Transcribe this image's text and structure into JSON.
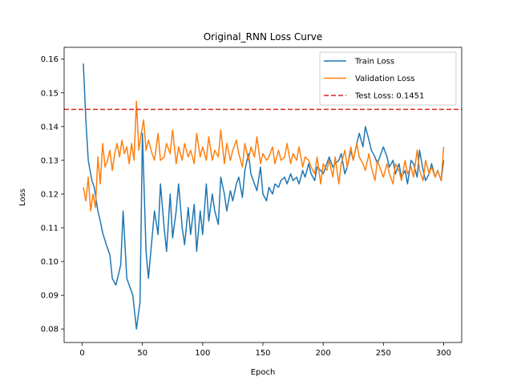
{
  "chart_data": {
    "type": "line",
    "title": "Original_RNN Loss Curve",
    "xlabel": "Epoch",
    "ylabel": "Loss",
    "xlim": [
      -15,
      315
    ],
    "ylim": [
      0.076,
      0.1635
    ],
    "xticks": [
      0,
      50,
      100,
      150,
      200,
      250,
      300
    ],
    "yticks": [
      0.08,
      0.09,
      0.1,
      0.11,
      0.12,
      0.13,
      0.14,
      0.15,
      0.16
    ],
    "ytick_labels": [
      "0.08",
      "0.09",
      "0.10",
      "0.11",
      "0.12",
      "0.13",
      "0.14",
      "0.15",
      "0.16"
    ],
    "grid": false,
    "legend": {
      "position": "top-right"
    },
    "colors": {
      "train": "#1f77b4",
      "validation": "#ff7f0e",
      "test": "#d62728"
    },
    "series": [
      {
        "name": "Train Loss",
        "style": "solid",
        "x": [
          1,
          3,
          5,
          8,
          10,
          13,
          15,
          17,
          20,
          23,
          25,
          28,
          30,
          32,
          34,
          37,
          40,
          42,
          45,
          48,
          50,
          53,
          55,
          58,
          60,
          63,
          65,
          68,
          70,
          73,
          75,
          78,
          80,
          83,
          85,
          88,
          90,
          93,
          95,
          98,
          100,
          103,
          105,
          108,
          110,
          113,
          115,
          118,
          120,
          123,
          125,
          128,
          130,
          133,
          135,
          138,
          140,
          143,
          145,
          148,
          150,
          153,
          155,
          158,
          160,
          163,
          165,
          168,
          170,
          173,
          175,
          178,
          180,
          183,
          185,
          188,
          190,
          193,
          195,
          198,
          200,
          203,
          205,
          208,
          210,
          213,
          215,
          218,
          220,
          223,
          225,
          228,
          230,
          233,
          235,
          238,
          240,
          243,
          245,
          248,
          250,
          253,
          255,
          258,
          260,
          263,
          265,
          268,
          270,
          273,
          275,
          278,
          280,
          283,
          285,
          288,
          290,
          293,
          295,
          298,
          300
        ],
        "values": [
          0.1587,
          0.142,
          0.13,
          0.124,
          0.122,
          0.115,
          0.112,
          0.1085,
          0.105,
          0.102,
          0.095,
          0.093,
          0.096,
          0.099,
          0.115,
          0.095,
          0.092,
          0.09,
          0.08,
          0.088,
          0.138,
          0.103,
          0.095,
          0.107,
          0.115,
          0.108,
          0.123,
          0.11,
          0.103,
          0.12,
          0.107,
          0.115,
          0.123,
          0.11,
          0.105,
          0.116,
          0.108,
          0.117,
          0.103,
          0.115,
          0.108,
          0.123,
          0.112,
          0.12,
          0.115,
          0.111,
          0.125,
          0.12,
          0.115,
          0.121,
          0.118,
          0.123,
          0.125,
          0.119,
          0.127,
          0.132,
          0.126,
          0.123,
          0.121,
          0.128,
          0.12,
          0.118,
          0.122,
          0.12,
          0.123,
          0.122,
          0.124,
          0.125,
          0.123,
          0.126,
          0.124,
          0.125,
          0.123,
          0.127,
          0.125,
          0.129,
          0.126,
          0.124,
          0.128,
          0.127,
          0.126,
          0.129,
          0.131,
          0.128,
          0.129,
          0.13,
          0.132,
          0.126,
          0.128,
          0.133,
          0.13,
          0.135,
          0.138,
          0.134,
          0.14,
          0.136,
          0.133,
          0.131,
          0.129,
          0.132,
          0.134,
          0.131,
          0.128,
          0.13,
          0.126,
          0.129,
          0.125,
          0.127,
          0.123,
          0.13,
          0.129,
          0.125,
          0.133,
          0.127,
          0.124,
          0.126,
          0.129,
          0.125,
          0.127,
          0.124,
          0.13
        ]
      },
      {
        "name": "Validation Loss",
        "style": "solid",
        "x": [
          1,
          3,
          5,
          7,
          9,
          11,
          13,
          15,
          17,
          19,
          21,
          23,
          25,
          27,
          29,
          31,
          33,
          35,
          37,
          39,
          41,
          43,
          45,
          47,
          49,
          51,
          53,
          55,
          58,
          60,
          63,
          65,
          68,
          70,
          73,
          75,
          78,
          80,
          83,
          85,
          88,
          90,
          93,
          95,
          98,
          100,
          103,
          105,
          108,
          110,
          113,
          115,
          118,
          120,
          123,
          125,
          128,
          130,
          133,
          135,
          138,
          140,
          143,
          145,
          148,
          150,
          153,
          155,
          158,
          160,
          163,
          165,
          168,
          170,
          173,
          175,
          178,
          180,
          183,
          185,
          188,
          190,
          193,
          195,
          198,
          200,
          203,
          205,
          208,
          210,
          213,
          215,
          218,
          220,
          223,
          225,
          228,
          230,
          233,
          235,
          238,
          240,
          243,
          245,
          248,
          250,
          253,
          255,
          258,
          260,
          263,
          265,
          268,
          270,
          273,
          275,
          278,
          280,
          283,
          285,
          288,
          290,
          293,
          295,
          298,
          300
        ],
        "values": [
          0.122,
          0.118,
          0.125,
          0.115,
          0.12,
          0.116,
          0.131,
          0.123,
          0.135,
          0.128,
          0.13,
          0.133,
          0.127,
          0.132,
          0.135,
          0.131,
          0.136,
          0.132,
          0.134,
          0.129,
          0.135,
          0.13,
          0.1475,
          0.133,
          0.138,
          0.142,
          0.133,
          0.136,
          0.132,
          0.13,
          0.138,
          0.13,
          0.131,
          0.135,
          0.132,
          0.139,
          0.129,
          0.134,
          0.13,
          0.135,
          0.131,
          0.133,
          0.129,
          0.138,
          0.131,
          0.134,
          0.13,
          0.137,
          0.13,
          0.133,
          0.131,
          0.139,
          0.129,
          0.135,
          0.13,
          0.133,
          0.136,
          0.132,
          0.128,
          0.135,
          0.13,
          0.134,
          0.131,
          0.137,
          0.129,
          0.132,
          0.13,
          0.131,
          0.134,
          0.129,
          0.133,
          0.13,
          0.131,
          0.135,
          0.129,
          0.132,
          0.13,
          0.134,
          0.128,
          0.131,
          0.13,
          0.128,
          0.126,
          0.131,
          0.123,
          0.129,
          0.127,
          0.13,
          0.125,
          0.131,
          0.123,
          0.129,
          0.133,
          0.128,
          0.134,
          0.13,
          0.135,
          0.131,
          0.129,
          0.127,
          0.132,
          0.128,
          0.124,
          0.13,
          0.127,
          0.125,
          0.129,
          0.126,
          0.123,
          0.129,
          0.127,
          0.124,
          0.13,
          0.126,
          0.128,
          0.125,
          0.133,
          0.127,
          0.124,
          0.13,
          0.126,
          0.128,
          0.125,
          0.127,
          0.124,
          0.134
        ]
      }
    ],
    "reference_lines": [
      {
        "name": "Test Loss: 0.1451",
        "style": "dashed",
        "value": 0.1451
      }
    ]
  }
}
